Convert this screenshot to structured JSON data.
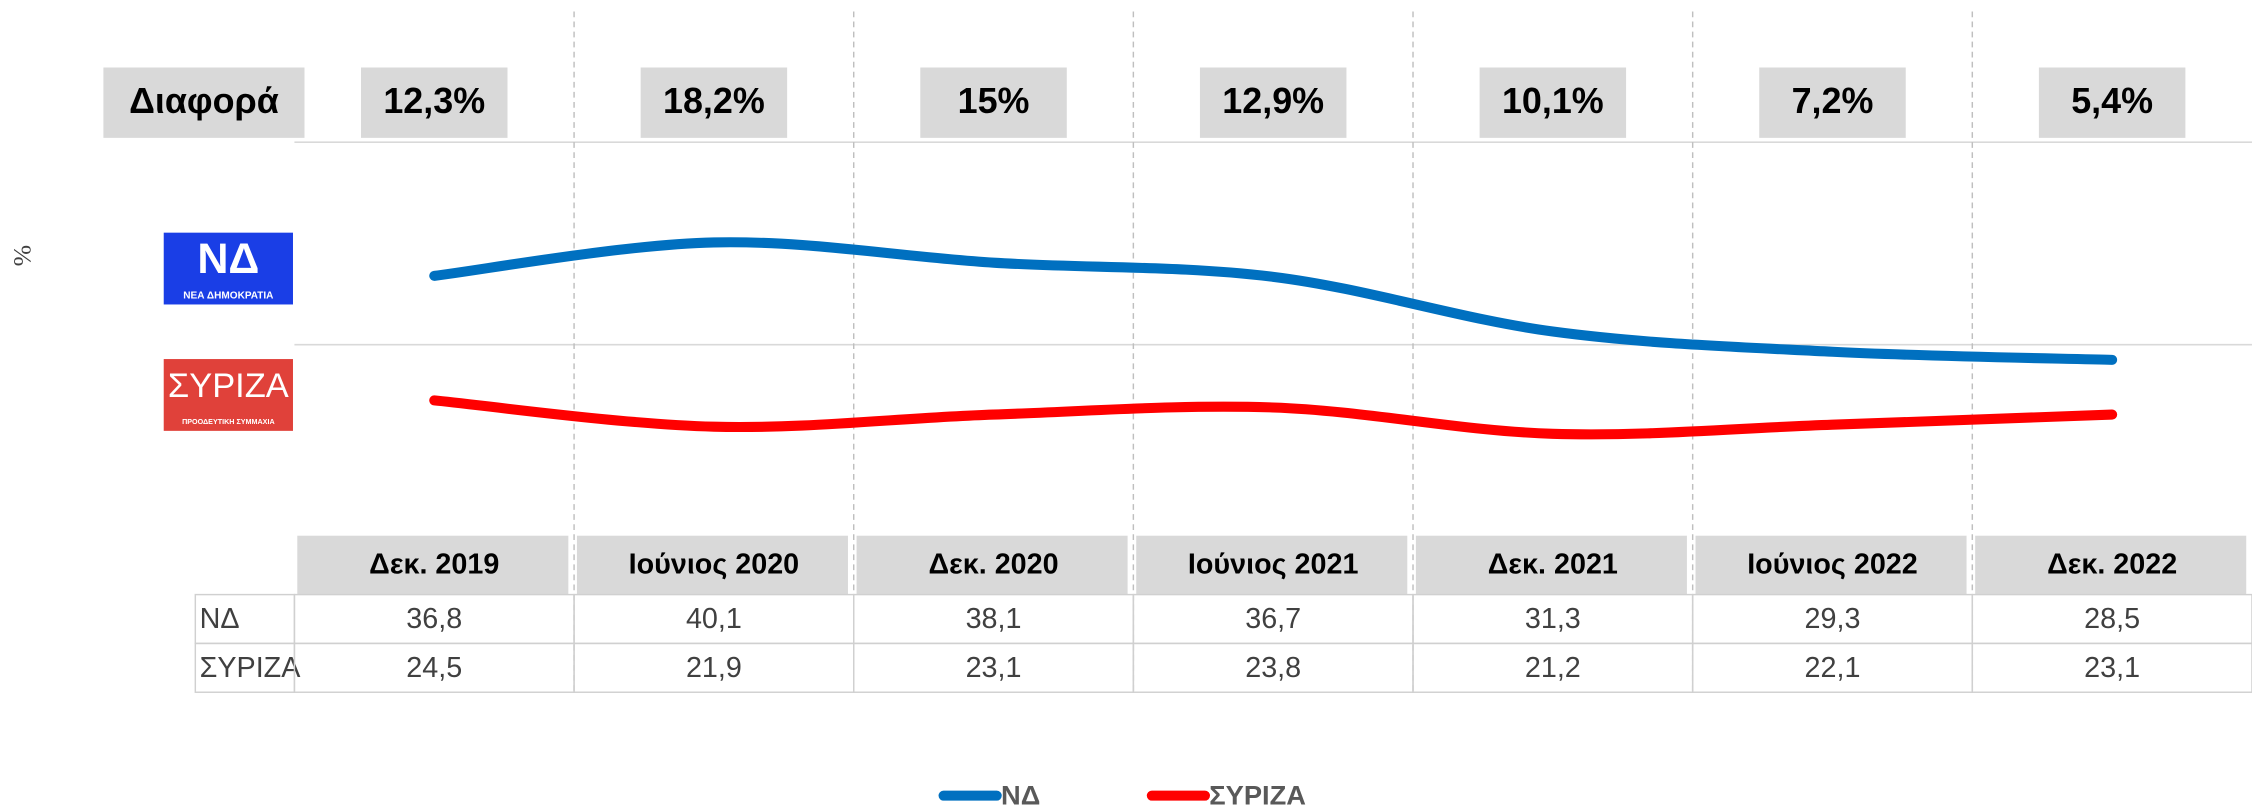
{
  "chart_data": {
    "type": "line",
    "y_label": "%",
    "difference_label": "Διαφορά",
    "categories": [
      "Δεκ. 2019",
      "Ιούνιος 2020",
      "Δεκ. 2020",
      "Ιούνιος 2021",
      "Δεκ. 2021",
      "Ιούνιος 2022",
      "Δεκ. 2022"
    ],
    "differences": [
      12.3,
      18.2,
      15,
      12.9,
      10.1,
      7.2,
      5.4
    ],
    "difference_labels": [
      "12,3%",
      "18,2%",
      "15%",
      "12,9%",
      "10,1%",
      "7,2%",
      "5,4%"
    ],
    "series": [
      {
        "name": "ΝΔ",
        "color": "#0070c0",
        "values": [
          36.8,
          40.1,
          38.1,
          36.7,
          31.3,
          29.3,
          28.5
        ],
        "value_labels": [
          "36,8",
          "40,1",
          "38,1",
          "36,7",
          "31,3",
          "29,3",
          "28,5"
        ],
        "logo": {
          "title": "ΝΔ",
          "subtitle": "ΝΕΑ ΔΗΜΟΚΡΑΤΙΑ",
          "color": "#1a3ee6"
        }
      },
      {
        "name": "ΣΥΡΙΖΑ",
        "color": "#ff0000",
        "values": [
          24.5,
          21.9,
          23.1,
          23.8,
          21.2,
          22.1,
          23.1
        ],
        "value_labels": [
          "24,5",
          "21,9",
          "23,1",
          "23,8",
          "21,2",
          "22,1",
          "23,1"
        ],
        "logo": {
          "title": "ΣΥΡΙΖΑ",
          "subtitle": "ΠΡΟΟΔΕΥΤΙΚΗ ΣΥΜΜΑΧΙΑ",
          "color": "#e0413a"
        }
      }
    ],
    "ylim": [
      10,
      50
    ],
    "yticks": [
      30,
      50
    ],
    "grid": true
  }
}
